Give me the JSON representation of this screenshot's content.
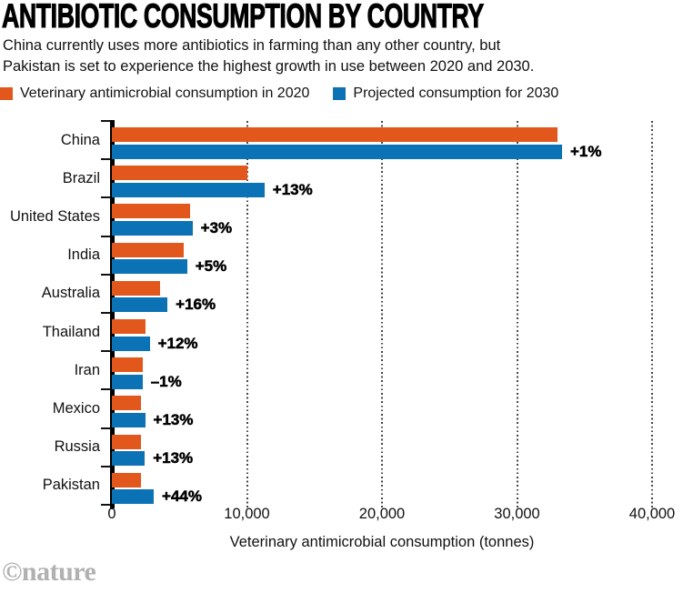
{
  "header": {
    "title": "ANTIBIOTIC CONSUMPTION BY COUNTRY",
    "subtitle_lines": [
      "China currently uses more antibiotics in farming than any other country, but",
      "Pakistan is set to experience the highest growth in use between 2020 and 2030."
    ]
  },
  "legend": {
    "items": [
      {
        "label": "Veterinary antimicrobial consumption in 2020",
        "color": "#e2581c"
      },
      {
        "label": "Projected consumption for 2030",
        "color": "#0b72b5"
      }
    ]
  },
  "chart_data": {
    "type": "bar",
    "orientation": "horizontal",
    "title": "ANTIBIOTIC CONSUMPTION BY COUNTRY",
    "categories": [
      "China",
      "Brazil",
      "United States",
      "India",
      "Australia",
      "Thailand",
      "Iran",
      "Mexico",
      "Russia",
      "Pakistan"
    ],
    "series": [
      {
        "name": "Veterinary antimicrobial consumption in 2020",
        "year": "2020",
        "color": "#e2581c",
        "values": [
          33000,
          10000,
          5800,
          5300,
          3550,
          2500,
          2300,
          2180,
          2160,
          2150
        ]
      },
      {
        "name": "Projected consumption for 2030",
        "year": "2030",
        "color": "#0b72b5",
        "values": [
          33330,
          11300,
          5970,
          5570,
          4120,
          2800,
          2270,
          2460,
          2440,
          3100
        ]
      }
    ],
    "growth_labels": [
      "+1%",
      "+13%",
      "+3%",
      "+5%",
      "+16%",
      "+12%",
      "–1%",
      "+13%",
      "+13%",
      "+44%"
    ],
    "xlabel": "Veterinary antimicrobial consumption (tonnes)",
    "xlim": [
      0,
      40000
    ],
    "x_ticks": [
      {
        "value": 0,
        "label": "0"
      },
      {
        "value": 10000,
        "label": "10,000"
      },
      {
        "value": 20000,
        "label": "20,000"
      },
      {
        "value": 30000,
        "label": "30,000"
      },
      {
        "value": 40000,
        "label": "40,000"
      }
    ],
    "grid": "vertical-dotted",
    "legend_position": "top"
  },
  "footer": {
    "logo": "©nature"
  },
  "colors": {
    "orange": "#e2581c",
    "blue": "#0b72b5",
    "grid": "#454545",
    "axis": "#000000",
    "logo_gray": "#b1b1b1"
  }
}
